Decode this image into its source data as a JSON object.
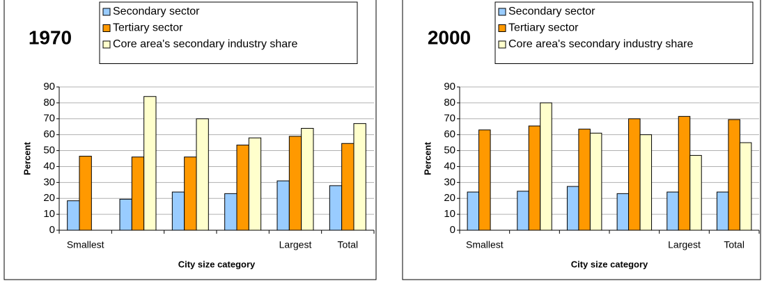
{
  "chart_data": [
    {
      "type": "bar",
      "title": "1970",
      "y_label": "Percent",
      "x_label": "City size category",
      "categories": [
        "Smallest",
        null,
        null,
        null,
        "Largest",
        "Total"
      ],
      "series": [
        {
          "name": "Secondary sector",
          "color": "#99ccff",
          "values": [
            18.5,
            19.5,
            24,
            23,
            31,
            28
          ]
        },
        {
          "name": "Tertiary sector",
          "color": "#ff9900",
          "values": [
            46.5,
            46,
            46,
            53.5,
            59,
            54.5
          ]
        },
        {
          "name": "Core area's secondary industry share",
          "color": "#ffffcc",
          "values": [
            null,
            84,
            70,
            58,
            64,
            67
          ]
        }
      ],
      "ylim": [
        0,
        90
      ],
      "yticks": [
        0,
        10,
        20,
        30,
        40,
        50,
        60,
        70,
        80,
        90
      ],
      "grid": true,
      "legend": "top"
    },
    {
      "type": "bar",
      "title": "2000",
      "y_label": "Percent",
      "x_label": "City size category",
      "categories": [
        "Smallest",
        null,
        null,
        null,
        "Largest",
        "Total"
      ],
      "series": [
        {
          "name": "Secondary sector",
          "color": "#99ccff",
          "values": [
            24,
            24.5,
            27.5,
            23,
            24,
            24
          ]
        },
        {
          "name": "Tertiary sector",
          "color": "#ff9900",
          "values": [
            63,
            65.5,
            63.5,
            70,
            71.5,
            69.5
          ]
        },
        {
          "name": "Core area's secondary industry share",
          "color": "#ffffcc",
          "values": [
            null,
            80,
            61,
            60,
            47,
            55
          ]
        }
      ],
      "ylim": [
        0,
        90
      ],
      "yticks": [
        0,
        10,
        20,
        30,
        40,
        50,
        60,
        70,
        80,
        90
      ],
      "grid": true,
      "legend": "top"
    }
  ]
}
